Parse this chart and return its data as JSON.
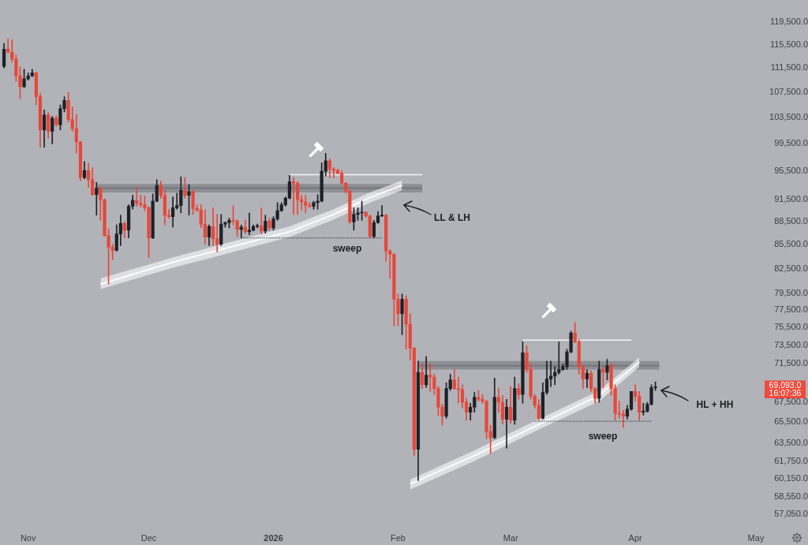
{
  "chart_data": {
    "type": "candlestick",
    "x": [
      "2025-10-26",
      "2025-10-27",
      "2025-10-28",
      "2025-10-29",
      "2025-10-30",
      "2025-10-31",
      "2025-11-01",
      "2025-11-02",
      "2025-11-03",
      "2025-11-04",
      "2025-11-05",
      "2025-11-06",
      "2025-11-07",
      "2025-11-08",
      "2025-11-09",
      "2025-11-10",
      "2025-11-11",
      "2025-11-12",
      "2025-11-13",
      "2025-11-14",
      "2025-11-15",
      "2025-11-16",
      "2025-11-17",
      "2025-11-18",
      "2025-11-19",
      "2025-11-20",
      "2025-11-21",
      "2025-11-22",
      "2025-11-23",
      "2025-11-24",
      "2025-11-25",
      "2025-11-26",
      "2025-11-27",
      "2025-11-28",
      "2025-11-29",
      "2025-11-30",
      "2025-12-01",
      "2025-12-02",
      "2025-12-03",
      "2025-12-04",
      "2025-12-05",
      "2025-12-06",
      "2025-12-07",
      "2025-12-08",
      "2025-12-09",
      "2025-12-10",
      "2025-12-11",
      "2025-12-12",
      "2025-12-13",
      "2025-12-14",
      "2025-12-15",
      "2025-12-16",
      "2025-12-17",
      "2025-12-18",
      "2025-12-19",
      "2025-12-20",
      "2025-12-21",
      "2025-12-22",
      "2025-12-23",
      "2025-12-24",
      "2025-12-25",
      "2025-12-26",
      "2025-12-27",
      "2025-12-28",
      "2025-12-29",
      "2025-12-30",
      "2025-12-31",
      "2026-01-01",
      "2026-01-02",
      "2026-01-03",
      "2026-01-04",
      "2026-01-05",
      "2026-01-06",
      "2026-01-07",
      "2026-01-08",
      "2026-01-09",
      "2026-01-10",
      "2026-01-11",
      "2026-01-12",
      "2026-01-13",
      "2026-01-14",
      "2026-01-15",
      "2026-01-16",
      "2026-01-17",
      "2026-01-18",
      "2026-01-19",
      "2026-01-20",
      "2026-01-21",
      "2026-01-22",
      "2026-01-23",
      "2026-01-24",
      "2026-01-25",
      "2026-01-26",
      "2026-01-27",
      "2026-01-28",
      "2026-01-29",
      "2026-01-30",
      "2026-01-31",
      "2026-02-01",
      "2026-02-02",
      "2026-02-03",
      "2026-02-04",
      "2026-02-05",
      "2026-02-06",
      "2026-02-07",
      "2026-02-08",
      "2026-02-09",
      "2026-02-10",
      "2026-02-11",
      "2026-02-12",
      "2026-02-13",
      "2026-02-14",
      "2026-02-15",
      "2026-02-16",
      "2026-02-17",
      "2026-02-18",
      "2026-02-19",
      "2026-02-20",
      "2026-02-21",
      "2026-02-22",
      "2026-02-23",
      "2026-02-24",
      "2026-02-25",
      "2026-02-26",
      "2026-02-27",
      "2026-02-28",
      "2026-03-01",
      "2026-03-02",
      "2026-03-03",
      "2026-03-04",
      "2026-03-05",
      "2026-03-06",
      "2026-03-07",
      "2026-03-08",
      "2026-03-09",
      "2026-03-10",
      "2026-03-11",
      "2026-03-12",
      "2026-03-13",
      "2026-03-14",
      "2026-03-15",
      "2026-03-16",
      "2026-03-17",
      "2026-03-18",
      "2026-03-19",
      "2026-03-20",
      "2026-03-21",
      "2026-03-22",
      "2026-03-23",
      "2026-03-24",
      "2026-03-25",
      "2026-03-26",
      "2026-03-27",
      "2026-03-28",
      "2026-03-29",
      "2026-03-30",
      "2026-03-31",
      "2026-04-01",
      "2026-04-02",
      "2026-04-03",
      "2026-04-04",
      "2026-04-05",
      "2026-04-06"
    ],
    "ohlc": [
      [
        111800,
        115700,
        111500,
        114700
      ],
      [
        114700,
        116500,
        114100,
        114200
      ],
      [
        114200,
        116300,
        112500,
        113000
      ],
      [
        113000,
        113700,
        109300,
        110200
      ],
      [
        110200,
        111700,
        106500,
        108400
      ],
      [
        108400,
        111300,
        108300,
        109700
      ],
      [
        109700,
        110700,
        109500,
        110200
      ],
      [
        110200,
        111300,
        110100,
        110700
      ],
      [
        110700,
        110800,
        105500,
        106800
      ],
      [
        106800,
        107400,
        99000,
        101600
      ],
      [
        101600,
        104700,
        99000,
        103900
      ],
      [
        103900,
        104300,
        100400,
        101400
      ],
      [
        101400,
        103700,
        99500,
        103400
      ],
      [
        103400,
        103800,
        102200,
        102400
      ],
      [
        102400,
        105500,
        101600,
        104900
      ],
      [
        104900,
        106800,
        104400,
        106200
      ],
      [
        106200,
        107500,
        102800,
        103200
      ],
      [
        103200,
        105200,
        101400,
        101800
      ],
      [
        101800,
        104000,
        98100,
        99800
      ],
      [
        99800,
        99900,
        94100,
        94600
      ],
      [
        94600,
        96900,
        94400,
        95600
      ],
      [
        95600,
        96700,
        93200,
        94300
      ],
      [
        94300,
        96000,
        92100,
        92200
      ],
      [
        92200,
        93900,
        89400,
        93100
      ],
      [
        93100,
        93300,
        88700,
        91500
      ],
      [
        91500,
        91600,
        86600,
        86700
      ],
      [
        86700,
        87600,
        80600,
        85200
      ],
      [
        85200,
        85600,
        83600,
        84800
      ],
      [
        84800,
        88100,
        84700,
        86900
      ],
      [
        86900,
        89400,
        85400,
        88300
      ],
      [
        88300,
        88500,
        86400,
        87400
      ],
      [
        87400,
        90800,
        86400,
        90600
      ],
      [
        90600,
        92100,
        90200,
        91400
      ],
      [
        91400,
        93200,
        90600,
        91000
      ],
      [
        91000,
        92100,
        90500,
        90800
      ],
      [
        90800,
        92000,
        90000,
        90400
      ],
      [
        90400,
        90600,
        83900,
        86400
      ],
      [
        86400,
        92300,
        86300,
        91300
      ],
      [
        91300,
        94300,
        91200,
        93500
      ],
      [
        93500,
        94100,
        91700,
        92100
      ],
      [
        92100,
        92800,
        88100,
        89400
      ],
      [
        89400,
        90200,
        89000,
        89200
      ],
      [
        89200,
        91900,
        87800,
        90400
      ],
      [
        90400,
        92400,
        90200,
        90700
      ],
      [
        90700,
        94700,
        89700,
        92800
      ],
      [
        92800,
        94600,
        91700,
        92100
      ],
      [
        92100,
        93600,
        89400,
        92600
      ],
      [
        92600,
        92800,
        89500,
        90300
      ],
      [
        90300,
        90800,
        89900,
        90100
      ],
      [
        90100,
        90800,
        87700,
        88200
      ],
      [
        88200,
        90100,
        85600,
        86500
      ],
      [
        86500,
        88100,
        85400,
        87900
      ],
      [
        87900,
        90400,
        85400,
        86300
      ],
      [
        86300,
        89500,
        84600,
        85600
      ],
      [
        85600,
        89500,
        85400,
        88200
      ],
      [
        88200,
        88500,
        87800,
        88400
      ],
      [
        88400,
        89000,
        87700,
        88700
      ],
      [
        88700,
        90700,
        88100,
        88600
      ],
      [
        88600,
        88800,
        86600,
        87500
      ],
      [
        87500,
        88100,
        86400,
        87800
      ],
      [
        87800,
        88700,
        87000,
        87200
      ],
      [
        87200,
        89700,
        86800,
        87400
      ],
      [
        87400,
        88100,
        87300,
        87900
      ],
      [
        87900,
        88200,
        87700,
        88000
      ],
      [
        88000,
        90400,
        86900,
        87300
      ],
      [
        87300,
        89400,
        87000,
        88600
      ],
      [
        88600,
        89000,
        87400,
        87700
      ],
      [
        87700,
        89200,
        87400,
        88900
      ],
      [
        88900,
        91100,
        88700,
        90000
      ],
      [
        90000,
        91100,
        89900,
        90800
      ],
      [
        90800,
        91900,
        90600,
        91700
      ],
      [
        91700,
        94900,
        91600,
        94000
      ],
      [
        94000,
        94600,
        89500,
        93800
      ],
      [
        93800,
        94000,
        89500,
        91500
      ],
      [
        91500,
        92100,
        90100,
        91200
      ],
      [
        91200,
        92100,
        89700,
        90700
      ],
      [
        90700,
        91100,
        90400,
        90600
      ],
      [
        90600,
        91300,
        90200,
        91100
      ],
      [
        91100,
        92200,
        90200,
        91300
      ],
      [
        91300,
        96700,
        91200,
        95500
      ],
      [
        95500,
        98100,
        94800,
        97000
      ],
      [
        97000,
        97300,
        94600,
        95800
      ],
      [
        95800,
        96000,
        94600,
        95600
      ],
      [
        95600,
        95800,
        95100,
        95200
      ],
      [
        95200,
        95600,
        93700,
        93800
      ],
      [
        93800,
        93900,
        92400,
        92700
      ],
      [
        92700,
        92800,
        88300,
        88500
      ],
      [
        88500,
        90400,
        87400,
        89500
      ],
      [
        89500,
        90400,
        88700,
        89700
      ],
      [
        89700,
        91300,
        88700,
        89800
      ],
      [
        89800,
        89900,
        89100,
        89300
      ],
      [
        89300,
        89400,
        86400,
        86600
      ],
      [
        86600,
        88700,
        86400,
        88400
      ],
      [
        88400,
        89900,
        88300,
        89300
      ],
      [
        89300,
        90700,
        89200,
        89400
      ],
      [
        89400,
        89500,
        83400,
        84700
      ],
      [
        84700,
        84900,
        81300,
        84300
      ],
      [
        84300,
        84400,
        75700,
        78800
      ],
      [
        78800,
        79400,
        75700,
        77100
      ],
      [
        77100,
        79400,
        74700,
        78800
      ],
      [
        78800,
        79200,
        73100,
        75900
      ],
      [
        75900,
        77100,
        71900,
        73200
      ],
      [
        73200,
        73300,
        62300,
        62900
      ],
      [
        62900,
        71800,
        60000,
        70600
      ],
      [
        70600,
        71600,
        68900,
        69300
      ],
      [
        69300,
        72300,
        69000,
        70300
      ],
      [
        70300,
        71500,
        68600,
        70100
      ],
      [
        70100,
        70400,
        68300,
        68900
      ],
      [
        68900,
        69100,
        66200,
        67000
      ],
      [
        67000,
        67300,
        65200,
        66100
      ],
      [
        66100,
        69500,
        65900,
        68900
      ],
      [
        68900,
        70400,
        68700,
        69800
      ],
      [
        69800,
        70900,
        68800,
        68900
      ],
      [
        68900,
        70100,
        67400,
        68800
      ],
      [
        68800,
        69300,
        66900,
        67500
      ],
      [
        67500,
        67900,
        65700,
        66500
      ],
      [
        66500,
        67400,
        65700,
        67000
      ],
      [
        67000,
        68500,
        66500,
        68000
      ],
      [
        68000,
        68700,
        67600,
        67800
      ],
      [
        67800,
        68300,
        67400,
        67600
      ],
      [
        67600,
        67700,
        63900,
        64600
      ],
      [
        64600,
        65200,
        62500,
        64000
      ],
      [
        64000,
        70000,
        63900,
        68000
      ],
      [
        68000,
        68900,
        66500,
        67500
      ],
      [
        67500,
        68200,
        65300,
        65800
      ],
      [
        65800,
        67800,
        63000,
        67000
      ],
      [
        67000,
        69100,
        65400,
        65700
      ],
      [
        65700,
        70100,
        65300,
        68900
      ],
      [
        68900,
        69400,
        67800,
        68300
      ],
      [
        68300,
        73900,
        67400,
        72700
      ],
      [
        72700,
        73500,
        70600,
        70900
      ],
      [
        70900,
        71600,
        67800,
        68100
      ],
      [
        68100,
        68300,
        66900,
        67200
      ],
      [
        67200,
        67800,
        65700,
        65900
      ],
      [
        65900,
        69500,
        65800,
        68500
      ],
      [
        68500,
        71800,
        68300,
        69900
      ],
      [
        69900,
        71800,
        69100,
        70200
      ],
      [
        70200,
        71200,
        69300,
        70600
      ],
      [
        70600,
        73900,
        70400,
        70900
      ],
      [
        70900,
        71500,
        70800,
        71200
      ],
      [
        71200,
        73100,
        70900,
        72800
      ],
      [
        72800,
        75100,
        72700,
        74900
      ],
      [
        74900,
        76100,
        73800,
        73900
      ],
      [
        73900,
        74200,
        70400,
        71200
      ],
      [
        71200,
        71400,
        68900,
        69900
      ],
      [
        69900,
        70900,
        69000,
        70500
      ],
      [
        70500,
        70800,
        68600,
        68900
      ],
      [
        68900,
        69000,
        67400,
        67900
      ],
      [
        67900,
        71800,
        67500,
        70900
      ],
      [
        70900,
        71200,
        69000,
        70600
      ],
      [
        70600,
        72000,
        69800,
        71300
      ],
      [
        71300,
        71500,
        68200,
        68900
      ],
      [
        68900,
        69300,
        65700,
        66400
      ],
      [
        66400,
        67600,
        65900,
        66300
      ],
      [
        66300,
        66700,
        65000,
        66100
      ],
      [
        66100,
        67200,
        65800,
        66800
      ],
      [
        66800,
        68600,
        66700,
        68600
      ],
      [
        68600,
        69300,
        67600,
        68100
      ],
      [
        68100,
        68600,
        65700,
        66500
      ],
      [
        66500,
        67400,
        66200,
        66600
      ],
      [
        66600,
        67500,
        66500,
        67300
      ],
      [
        67300,
        69300,
        67200,
        69000
      ],
      [
        69000,
        69600,
        68700,
        69093
      ]
    ],
    "colors": [
      "#1f2128",
      "#e5483b",
      "#e5483b",
      "#e5483b",
      "#e5483b",
      "#1f2128",
      "#1f2128",
      "#1f2128",
      "#e5483b",
      "#e5483b",
      "#1f2128",
      "#e5483b",
      "#1f2128",
      "#e5483b",
      "#1f2128",
      "#1f2128",
      "#e5483b",
      "#e5483b",
      "#e5483b",
      "#e5483b",
      "#1f2128",
      "#e5483b",
      "#e5483b",
      "#1f2128",
      "#e5483b",
      "#e5483b",
      "#e5483b",
      "#e5483b",
      "#1f2128",
      "#1f2128",
      "#e5483b",
      "#1f2128",
      "#1f2128",
      "#e5483b",
      "#e5483b",
      "#e5483b",
      "#e5483b",
      "#1f2128",
      "#1f2128",
      "#e5483b",
      "#e5483b",
      "#e5483b",
      "#1f2128",
      "#1f2128",
      "#1f2128",
      "#e5483b",
      "#1f2128",
      "#e5483b",
      "#e5483b",
      "#e5483b",
      "#e5483b",
      "#1f2128",
      "#e5483b",
      "#e5483b",
      "#1f2128",
      "#1f2128",
      "#1f2128",
      "#e5483b",
      "#e5483b",
      "#1f2128",
      "#e5483b",
      "#1f2128",
      "#1f2128",
      "#1f2128",
      "#e5483b",
      "#1f2128",
      "#e5483b",
      "#1f2128",
      "#1f2128",
      "#1f2128",
      "#1f2128",
      "#1f2128",
      "#e5483b",
      "#e5483b",
      "#e5483b",
      "#e5483b",
      "#e5483b",
      "#1f2128",
      "#1f2128",
      "#1f2128",
      "#1f2128",
      "#e5483b",
      "#e5483b",
      "#e5483b",
      "#e5483b",
      "#e5483b",
      "#e5483b",
      "#1f2128",
      "#1f2128",
      "#1f2128",
      "#e5483b",
      "#e5483b",
      "#1f2128",
      "#1f2128",
      "#1f2128",
      "#e5483b",
      "#e5483b",
      "#e5483b",
      "#e5483b",
      "#1f2128",
      "#e5483b",
      "#e5483b",
      "#e5483b",
      "#1f2128",
      "#e5483b",
      "#1f2128",
      "#e5483b",
      "#e5483b",
      "#e5483b",
      "#e5483b",
      "#1f2128",
      "#1f2128",
      "#e5483b",
      "#e5483b",
      "#e5483b",
      "#e5483b",
      "#1f2128",
      "#1f2128",
      "#e5483b",
      "#e5483b",
      "#e5483b",
      "#e5483b",
      "#1f2128",
      "#e5483b",
      "#e5483b",
      "#1f2128",
      "#e5483b",
      "#1f2128",
      "#e5483b",
      "#1f2128",
      "#e5483b",
      "#e5483b",
      "#e5483b",
      "#e5483b",
      "#1f2128",
      "#1f2128",
      "#1f2128",
      "#1f2128",
      "#1f2128",
      "#1f2128",
      "#1f2128",
      "#1f2128",
      "#e5483b",
      "#e5483b",
      "#e5483b",
      "#1f2128",
      "#e5483b",
      "#e5483b",
      "#1f2128",
      "#e5483b",
      "#1f2128",
      "#e5483b",
      "#e5483b",
      "#e5483b",
      "#e5483b",
      "#1f2128",
      "#1f2128",
      "#e5483b",
      "#e5483b",
      "#1f2128",
      "#1f2128",
      "#1f2128",
      "#1f2128"
    ],
    "series": [
      {
        "type": "line",
        "color": "#4b4e56",
        "line_style": "dotted",
        "x": [
          "2025-12-24",
          "2026-01-28"
        ],
        "values": [
          86400,
          86400
        ]
      },
      {
        "type": "line",
        "color": "#4b4e56",
        "line_style": "dotted",
        "x": [
          "2026-03-07",
          "2026-04-05"
        ],
        "values": [
          65600,
          65600
        ]
      },
      {
        "type": "line",
        "color": "#f4f4f5",
        "x": [
          "2026-01-05",
          "2026-02-07"
        ],
        "values": [
          95000,
          95000
        ]
      },
      {
        "type": "line",
        "color": "#f4f4f5",
        "x": [
          "2026-03-04",
          "2026-03-31"
        ],
        "values": [
          74100,
          74100
        ]
      },
      {
        "type": "line",
        "color": "#fcfcfd",
        "x": [
          "2025-11-19",
          "2025-12-07",
          "2026-01-05",
          "2026-01-16",
          "2026-01-25",
          "2026-02-02"
        ],
        "values": [
          80600,
          83300,
          87200,
          89500,
          91800,
          93500
        ],
        "lower": [
          80000,
          82600,
          86500,
          88800,
          91100,
          92800
        ],
        "upper": [
          81300,
          83900,
          87900,
          90200,
          92500,
          94200
        ]
      },
      {
        "type": "line",
        "color": "#fcfcfd",
        "x": [
          "2026-02-04",
          "2026-02-20",
          "2026-03-07",
          "2026-03-23",
          "2026-04-02"
        ],
        "values": [
          59700,
          62300,
          65100,
          68200,
          71700
        ],
        "lower": [
          59200,
          61800,
          64600,
          67600,
          71200
        ],
        "upper": [
          60100,
          62800,
          65600,
          68700,
          72200
        ]
      },
      {
        "type": "line",
        "color": "#76777c",
        "x": [
          "2025-11-18",
          "2026-02-07"
        ],
        "values": [
          93100,
          93100
        ],
        "lower": [
          92500,
          92500
        ],
        "upper": [
          93700,
          93700
        ]
      },
      {
        "type": "line",
        "color": "#76777c",
        "x": [
          "2026-02-06",
          "2026-04-07"
        ],
        "values": [
          71300,
          71300
        ],
        "lower": [
          70900,
          70900
        ],
        "upper": [
          71800,
          71800
        ]
      }
    ],
    "xlim": [
      "2025-10-25",
      "2026-05-01"
    ],
    "xticks": [
      {
        "value": "2025-11-01",
        "label": "Nov"
      },
      {
        "value": "2025-12-01",
        "label": "Dec"
      },
      {
        "value": "2026-01-01",
        "label": "2026"
      },
      {
        "value": "2026-02-01",
        "label": "Feb"
      },
      {
        "value": "2026-03-01",
        "label": "Mar"
      },
      {
        "value": "2026-04-01",
        "label": "Apr"
      },
      {
        "value": "2026-05-01",
        "label": "May"
      }
    ],
    "ylim": [
      57050,
      123500
    ],
    "yticks": [
      {
        "value": 119500,
        "label": "119,500.0"
      },
      {
        "value": 115500,
        "label": "115,500.0"
      },
      {
        "value": 111500,
        "label": "111,500.0"
      },
      {
        "value": 107500,
        "label": "107,500.0"
      },
      {
        "value": 103500,
        "label": "103,500.0"
      },
      {
        "value": 99500,
        "label": "99,500.0"
      },
      {
        "value": 95500,
        "label": "95,500.0"
      },
      {
        "value": 91500,
        "label": "91,500.0"
      },
      {
        "value": 88500,
        "label": "88,500.0"
      },
      {
        "value": 85500,
        "label": "85,500.0"
      },
      {
        "value": 82500,
        "label": "82,500.0"
      },
      {
        "value": 79500,
        "label": "79,500.0"
      },
      {
        "value": 77500,
        "label": "77,500.0"
      },
      {
        "value": 75500,
        "label": "75,500.0"
      },
      {
        "value": 73500,
        "label": "73,500.0"
      },
      {
        "value": 71500,
        "label": "71,500.0"
      },
      {
        "value": 67500,
        "label": "67,500.0"
      },
      {
        "value": 65500,
        "label": "65,500.0"
      },
      {
        "value": 63500,
        "label": "63,500.0"
      },
      {
        "value": 61750,
        "label": "61,750.0"
      },
      {
        "value": 60150,
        "label": "60,150.0"
      },
      {
        "value": 58550,
        "label": "58,550.0"
      },
      {
        "value": 57050,
        "label": "57,050.0"
      }
    ],
    "log": true,
    "annotations": [
      "LL & LH",
      "sweep",
      "sweep",
      "HL + HH",
      "69,093.0",
      "16:07:36"
    ]
  }
}
